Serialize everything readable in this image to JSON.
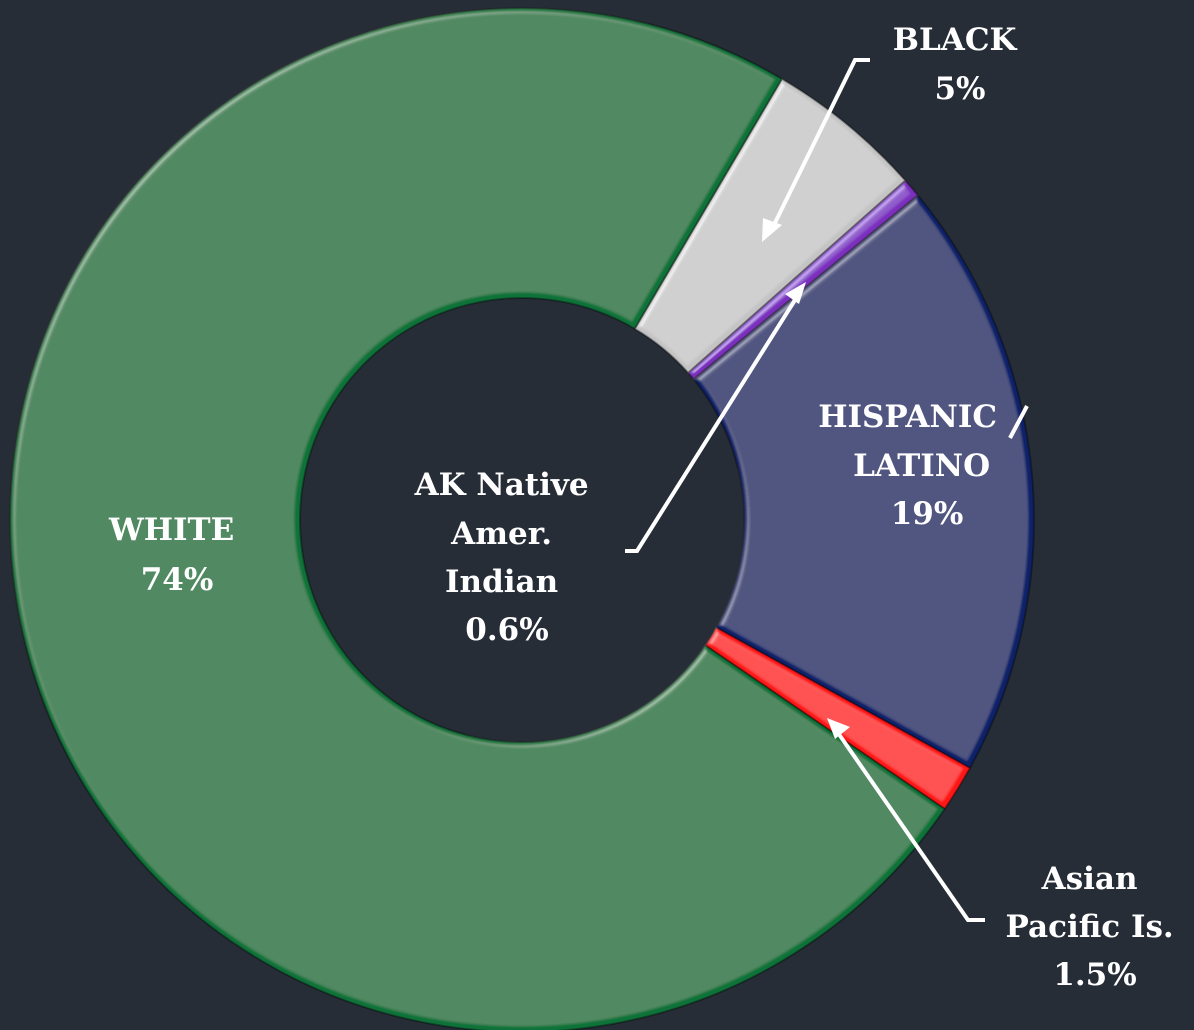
{
  "chart_data": {
    "type": "pie",
    "style": "donut",
    "title": "",
    "series": [
      {
        "name": "",
        "values": [
          74,
          5,
          0.6,
          19,
          1.5
        ]
      }
    ],
    "categories": [
      "WHITE",
      "BLACK",
      "AK Native Amer. Indian",
      "HISPANIC LATINO",
      "Asian Pacific Is."
    ],
    "slices": [
      {
        "key": "white",
        "label_lines": [
          "WHITE",
          "74%"
        ],
        "value": 74,
        "color": "#0b7339"
      },
      {
        "key": "black",
        "label_lines": [
          "BLACK",
          "5%"
        ],
        "value": 5,
        "color": "#c4c4c4"
      },
      {
        "key": "aknative",
        "label_lines": [
          "AK Native",
          "Amer.",
          "Indian",
          "0.6%"
        ],
        "value": 0.6,
        "color": "#7b2fbe"
      },
      {
        "key": "hispanic",
        "label_lines": [
          "HISPANIC",
          "LATINO",
          "19%"
        ],
        "value": 19,
        "color": "#0b2169"
      },
      {
        "key": "asian",
        "label_lines": [
          "Asian",
          "Pacific Is.",
          "1.5%"
        ],
        "value": 1.5,
        "color": "#ff1414"
      }
    ],
    "background": "#262d37",
    "label_color": "#ffffff"
  }
}
